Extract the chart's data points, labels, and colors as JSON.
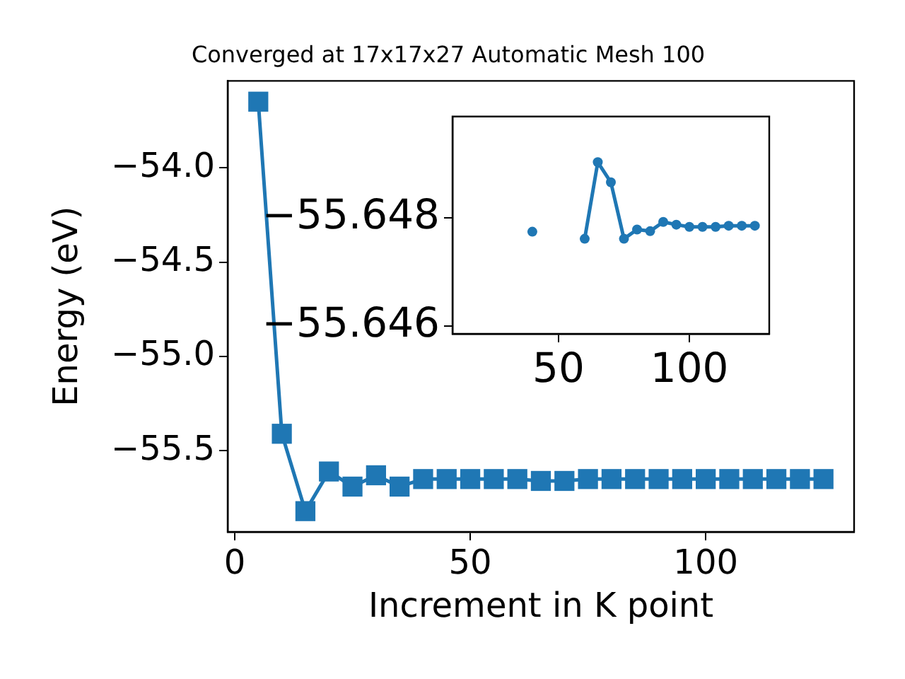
{
  "chart_data": [
    {
      "type": "line",
      "title": "Converged at 17x17x27 Automatic Mesh 100",
      "xlabel": "Increment in K point",
      "ylabel": "Energy (eV)",
      "x": [
        5,
        10,
        15,
        20,
        25,
        30,
        35,
        40,
        45,
        50,
        55,
        60,
        65,
        70,
        75,
        80,
        85,
        90,
        95,
        100,
        105,
        110,
        115,
        120,
        125
      ],
      "series": [
        {
          "color": "#1f77b4",
          "values": [
            -53.65,
            -55.41,
            -55.82,
            -55.61,
            -55.69,
            -55.63,
            -55.69,
            -55.65,
            -55.65,
            -55.65,
            -55.65,
            -55.65,
            -55.66,
            -55.66,
            -55.65,
            -55.65,
            -55.65,
            -55.65,
            -55.65,
            -55.65,
            -55.65,
            -55.65,
            -55.65,
            -55.65,
            -55.65
          ]
        }
      ],
      "xlim": [
        -1.5,
        131.5
      ],
      "ylim": [
        -55.93,
        -53.54
      ],
      "xticks": [
        0,
        50,
        100
      ],
      "yticks": [
        {
          "value": -55.5,
          "label": "−55.5"
        },
        {
          "value": -55,
          "label": "−55.0"
        },
        {
          "value": -54.5,
          "label": "−54.5"
        },
        {
          "value": -54,
          "label": "−54.0"
        }
      ],
      "marker": "square",
      "grid": false,
      "legend": false
    },
    {
      "type": "line",
      "series": [
        {
          "color": "#1f77b4",
          "x": [
            40,
            45,
            50,
            55,
            60,
            65,
            70,
            75,
            80,
            85,
            90,
            95,
            100,
            105,
            110,
            115,
            120,
            125
          ],
          "values": [
            -55.64774,
            null,
            null,
            null,
            -55.64761,
            -55.64902,
            -55.64865,
            -55.64761,
            -55.64778,
            -55.64775,
            -55.64792,
            -55.64787,
            -55.64783,
            -55.64783,
            -55.64783,
            -55.64785,
            -55.64785,
            -55.64785
          ]
        }
      ],
      "xlim": [
        9.5,
        130.5
      ],
      "ylim": [
        -55.64586,
        -55.64986
      ],
      "xticks": [
        50,
        100
      ],
      "yticks": [
        {
          "value": -55.648,
          "label": "−55.648"
        },
        {
          "value": -55.646,
          "label": "−55.646"
        }
      ],
      "marker": "circle",
      "grid": false,
      "legend": false
    }
  ]
}
